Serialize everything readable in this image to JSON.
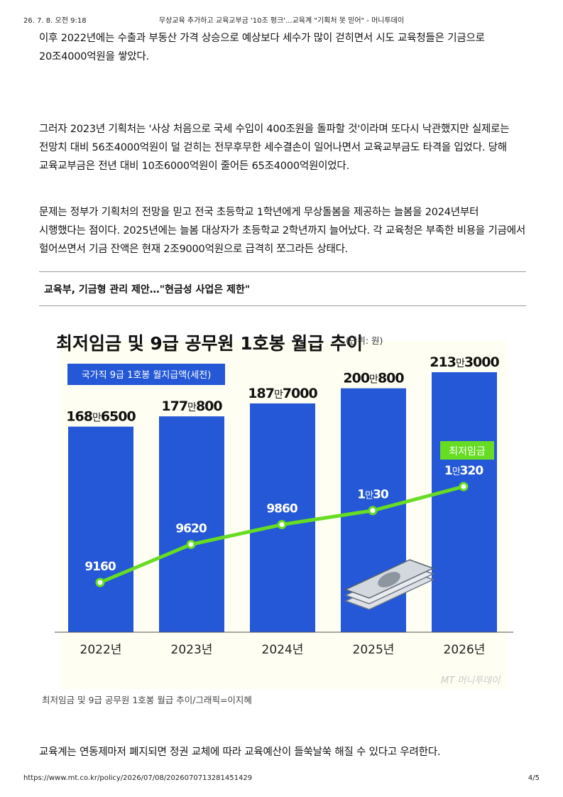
{
  "print_header": {
    "date": "26. 7. 8. 오전 9:18",
    "title": "무상교육 추가하고 교육교부금 '10조 펑크'...교육계 \"기획처 못 믿어\" - 머니투데이"
  },
  "article": {
    "paragraph_1": "이후 2022년에는 수출과 부동산 가격 상승으로 예상보다 세수가 많이 걷히면서 시도 교육청들은 기금으로 20조4000억원을 쌓았다.",
    "paragraph_2": "그러자 2023년 기획처는 '사상 처음으로 국세 수입이 400조원을 돌파할 것'이라며 또다시 낙관했지만 실제로는 전망치 대비 56조4000억원이 덜 걷히는 전무후무한 세수결손이 일어나면서 교육교부금도 타격을 입었다. 당해 교육교부금은 전년 대비 10조6000억원이 줄어든 65조4000억원이었다.",
    "paragraph_3": "문제는 정부가 기획처의 전망을 믿고 전국 초등학교 1학년에게 무상돌봄을 제공하는 늘봄을 2024년부터 시행했다는 점이다. 2025년에는 늘봄 대상자가 초등학교 2학년까지 늘어났다. 각 교육청은 부족한 비용을 기금에서 헐어쓰면서 기금 잔액은 현재 2조9000억원으로 급격히 쪼그라든 상태다.",
    "subheading": "교육부, 기금형 관리 제안…\"현금성 사업은 제한\"",
    "image_caption": "최저임금 및 9급 공무원 1호봉 월급 추이/그래픽=이지혜",
    "paragraph_4": "교육계는 연동제마저 폐지되면 정권 교체에 따라 교육예산이 들쑥날쑥 해질 수 있다고 우려한다."
  },
  "chart_data": {
    "type": "bar",
    "title": "최저임금 및 9급 공무원 1호봉 월급 추이",
    "unit_note": "(단위: 원)",
    "categories": [
      "2022년",
      "2023년",
      "2024년",
      "2025년",
      "2026년"
    ],
    "bar_series": {
      "name": "국가직 9급 1호봉 월지급액(세전)",
      "values": [
        1686500,
        1770800,
        1877000,
        2000800,
        2133000
      ],
      "labels": [
        {
          "big1": "168",
          "small": "만",
          "big2": "6500"
        },
        {
          "big1": "177",
          "small": "만",
          "big2": "800"
        },
        {
          "big1": "187",
          "small": "만",
          "big2": "7000"
        },
        {
          "big1": "200",
          "small": "만",
          "big2": "800"
        },
        {
          "big1": "213",
          "small": "만",
          "big2": "3000"
        }
      ],
      "color": "#2458d6"
    },
    "line_series": {
      "name": "최저임금",
      "values": [
        9160,
        9620,
        9860,
        10030,
        10320
      ],
      "labels": [
        {
          "big1": "9160",
          "small": "",
          "big2": ""
        },
        {
          "big1": "9620",
          "small": "",
          "big2": ""
        },
        {
          "big1": "9860",
          "small": "",
          "big2": ""
        },
        {
          "big1": "1",
          "small": "만",
          "big2": "30"
        },
        {
          "big1": "1",
          "small": "만",
          "big2": "320"
        }
      ],
      "color": "#66dd22"
    },
    "watermark": "MT 머니투데이"
  },
  "print_footer": {
    "url": "https://www.mt.co.kr/policy/2026/07/08/2026070713281451429",
    "page": "4/5"
  },
  "colors": {
    "bar": "#2458d6",
    "line": "#66dd22",
    "chart_background": "#fffef2",
    "legend_background": "#2458d6"
  }
}
